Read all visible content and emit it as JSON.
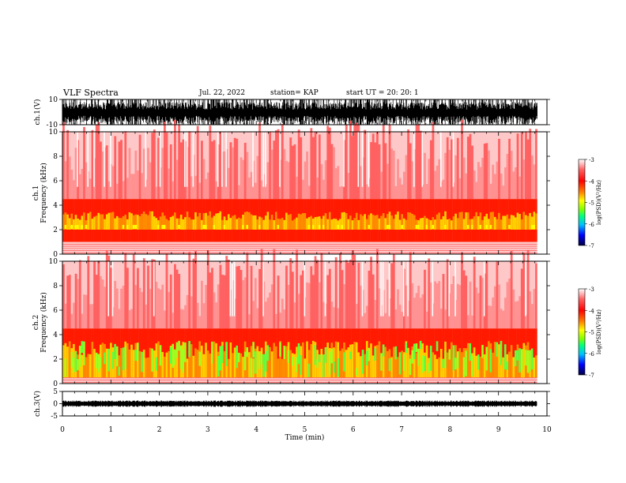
{
  "header": {
    "title": "VLF Spectra",
    "date": "Jul. 22, 2022",
    "station": "station= KAP",
    "start": "start  UT =   20: 20: 1"
  },
  "chart_data": {
    "type": "heatmap",
    "x_axis": {
      "label": "Time (min)",
      "range": [
        0,
        10
      ],
      "ticks": [
        "0",
        "1",
        "2",
        "3",
        "4",
        "5",
        "6",
        "7",
        "8",
        "9",
        "10"
      ],
      "data_end_min": 9.8
    },
    "panels": [
      {
        "type": "line",
        "ylabel": "ch.1(V)",
        "ylim": [
          -10,
          10
        ],
        "tick_labels": [
          "10",
          "-10"
        ],
        "amplitude_range": [
          -10,
          10
        ]
      },
      {
        "type": "heatmap",
        "ylabel_line1": "ch.1",
        "ylabel_line2": "Frequency (kHz)",
        "ylim": [
          0,
          10
        ],
        "tick_labels": [
          "10",
          "8",
          "6",
          "4",
          "2",
          "0"
        ],
        "colorbar": {
          "label": "log(PSD)(V²/Hz)",
          "range": [
            -7,
            -3
          ],
          "ticks": [
            "-3",
            "-4",
            "-5",
            "-6",
            "-7"
          ]
        },
        "band_khz": [
          1.0,
          4.5
        ],
        "peak_khz": [
          2.0,
          3.5
        ],
        "intensity": "moderate"
      },
      {
        "type": "heatmap",
        "ylabel_line1": "ch.2",
        "ylabel_line2": "Frequency (kHz)",
        "ylim": [
          0,
          10
        ],
        "tick_labels": [
          "10",
          "8",
          "6",
          "4",
          "2",
          "0"
        ],
        "colorbar": {
          "label": "log(PSD)(V²/Hz)",
          "range": [
            -7,
            -3
          ],
          "ticks": [
            "-3",
            "-4",
            "-5",
            "-6",
            "-7"
          ]
        },
        "band_khz": [
          0.5,
          4.5
        ],
        "peak_khz": [
          0.5,
          3.5
        ],
        "intensity": "strong"
      },
      {
        "type": "line",
        "ylabel": "ch.3(V)",
        "ylim": [
          -5,
          5
        ],
        "tick_labels": [
          "5",
          "0",
          "-5"
        ],
        "amplitude_range": [
          -1,
          1
        ]
      }
    ],
    "colormap": [
      "#000060",
      "#0000ff",
      "#00c0ff",
      "#00ff80",
      "#80ff00",
      "#ffff00",
      "#ff8000",
      "#ff0000",
      "#ff8080",
      "#ffffff"
    ]
  }
}
